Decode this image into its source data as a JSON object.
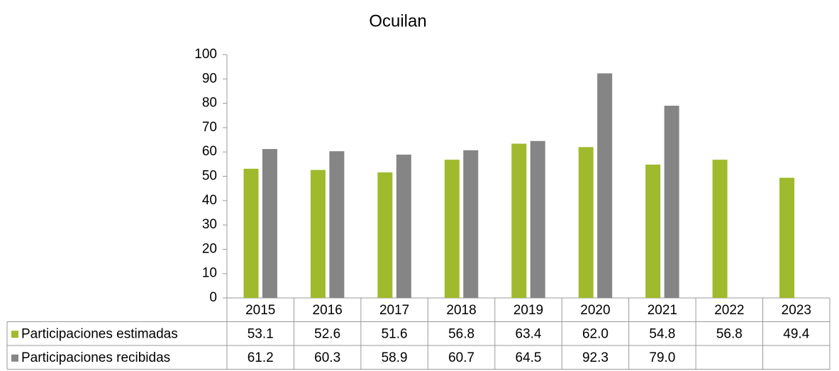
{
  "chart_data": {
    "type": "bar",
    "title": "Ocuilan",
    "categories": [
      "2015",
      "2016",
      "2017",
      "2018",
      "2019",
      "2020",
      "2021",
      "2022",
      "2023"
    ],
    "series": [
      {
        "name": "Participaciones estimadas",
        "color": "#9fba2c",
        "values": [
          53.1,
          52.6,
          51.6,
          56.8,
          63.4,
          62.0,
          54.8,
          56.8,
          49.4
        ],
        "value_labels": [
          "53.1",
          "52.6",
          "51.6",
          "56.8",
          "63.4",
          "62.0",
          "54.8",
          "56.8",
          "49.4"
        ]
      },
      {
        "name": "Participaciones recibidas",
        "color": "#858585",
        "values": [
          61.2,
          60.3,
          58.9,
          60.7,
          64.5,
          92.3,
          79.0,
          null,
          null
        ],
        "value_labels": [
          "61.2",
          "60.3",
          "58.9",
          "60.7",
          "64.5",
          "92.3",
          "79.0",
          null,
          null
        ]
      }
    ],
    "ylim": [
      0,
      100
    ],
    "yticks": [
      0,
      10,
      20,
      30,
      40,
      50,
      60,
      70,
      80,
      90,
      100
    ],
    "grid": false
  }
}
